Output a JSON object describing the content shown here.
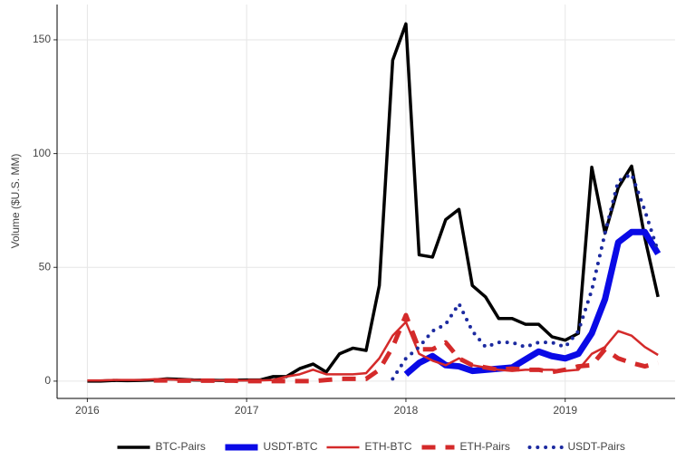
{
  "chart_data": {
    "type": "line",
    "y_label": "Volume ($U.S. MM)",
    "x": [
      2016.0,
      2016.083,
      2016.167,
      2016.25,
      2016.333,
      2016.417,
      2016.5,
      2016.583,
      2016.667,
      2016.75,
      2016.833,
      2016.917,
      2017.0,
      2017.083,
      2017.167,
      2017.25,
      2017.333,
      2017.417,
      2017.5,
      2017.583,
      2017.667,
      2017.75,
      2017.833,
      2017.917,
      2018.0,
      2018.083,
      2018.167,
      2018.25,
      2018.333,
      2018.417,
      2018.5,
      2018.583,
      2018.667,
      2018.75,
      2018.833,
      2018.917,
      2019.0,
      2019.083,
      2019.167,
      2019.25,
      2019.333,
      2019.417,
      2019.5,
      2019.583
    ],
    "xlim": [
      2015.81,
      2019.69
    ],
    "xticks": [
      2016,
      2017,
      2018,
      2019
    ],
    "ylim": [
      -7.6,
      165.5
    ],
    "yticks": [
      0,
      50,
      100,
      150
    ],
    "grid": true,
    "legend": "bottom",
    "series": [
      {
        "name": "BTC-Pairs",
        "color": "#000000",
        "linewidth": 3.5,
        "linestyle": "solid",
        "values": [
          0,
          0,
          0.3,
          0.2,
          0.3,
          0.5,
          1,
          0.8,
          0.5,
          0.4,
          0.3,
          0.4,
          0.5,
          0.5,
          2,
          2,
          5.5,
          7.5,
          4,
          12,
          14.5,
          13.5,
          42,
          141,
          157,
          55.5,
          54.5,
          71,
          75.5,
          42,
          37,
          27.5,
          27.5,
          25,
          25,
          19.5,
          18,
          21,
          94,
          65,
          85,
          94.5,
          63,
          37
        ]
      },
      {
        "name": "USDT-BTC",
        "color": "#0a0ae6",
        "linewidth": 7,
        "linestyle": "solid",
        "values": [
          null,
          null,
          null,
          null,
          null,
          null,
          null,
          null,
          null,
          null,
          null,
          null,
          null,
          null,
          null,
          null,
          null,
          null,
          null,
          null,
          null,
          null,
          null,
          null,
          3,
          8,
          11,
          7,
          6.5,
          4.5,
          5,
          5.5,
          6,
          9.5,
          13,
          11,
          10,
          12,
          21,
          36,
          61,
          65.5,
          65.5,
          56
        ]
      },
      {
        "name": "ETH-BTC",
        "color": "#d42a2a",
        "linewidth": 2.5,
        "linestyle": "solid",
        "values": [
          0.3,
          0.3,
          0.5,
          0.5,
          0.5,
          0.8,
          0.8,
          0.5,
          0.5,
          0.3,
          0.3,
          0.3,
          0.3,
          0.3,
          0.5,
          2,
          3,
          5,
          3,
          3,
          3,
          3.5,
          10,
          20,
          26,
          12,
          9,
          7,
          10,
          7,
          6,
          5,
          4.5,
          5,
          5,
          5,
          4.5,
          5,
          12,
          15,
          22,
          20,
          15,
          11.5
        ]
      },
      {
        "name": "ETH-Pairs",
        "color": "#d42a2a",
        "linewidth": 5,
        "linestyle": "dashed",
        "values": [
          null,
          null,
          null,
          null,
          null,
          0.3,
          0.3,
          0.2,
          0.2,
          0.2,
          0.2,
          0.2,
          0,
          0,
          0,
          0,
          0,
          0,
          0.5,
          1,
          1,
          1,
          5,
          15,
          29,
          14,
          14,
          17,
          10,
          7,
          6,
          5,
          5.5,
          5,
          5,
          4,
          5,
          6.5,
          7,
          14,
          10,
          8,
          6.5,
          8
        ]
      },
      {
        "name": "USDT-Pairs",
        "color": "#1c2aa0",
        "linewidth": 4,
        "linestyle": "dotted",
        "values": [
          null,
          null,
          null,
          null,
          null,
          null,
          null,
          null,
          null,
          null,
          null,
          null,
          null,
          null,
          null,
          null,
          null,
          null,
          null,
          null,
          null,
          null,
          null,
          1,
          10,
          15,
          22,
          25,
          34,
          22,
          15,
          17,
          17,
          15,
          17,
          17,
          15,
          22,
          40,
          65,
          88,
          91,
          75,
          57
        ]
      }
    ]
  }
}
